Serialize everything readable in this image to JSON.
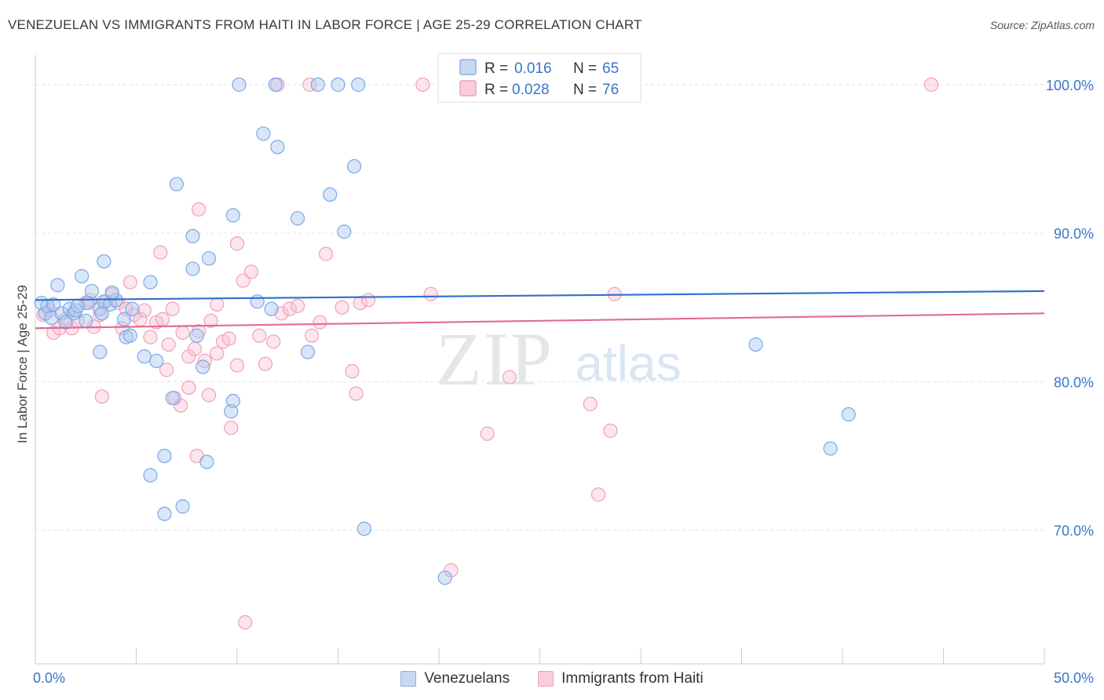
{
  "title": "VENEZUELAN VS IMMIGRANTS FROM HAITI IN LABOR FORCE | AGE 25-29 CORRELATION CHART",
  "source": "Source: ZipAtlas.com",
  "legend": {
    "items": [
      {
        "r_label": "R =",
        "r_value": "0.016",
        "n_label": "N =",
        "n_value": "65"
      },
      {
        "r_label": "R =",
        "r_value": "0.028",
        "n_label": "N =",
        "n_value": "76"
      }
    ]
  },
  "bottom_legend": [
    "Venezuelans",
    "Immigrants from Haiti"
  ],
  "chart_data": {
    "type": "scatter",
    "title": "VENEZUELAN VS IMMIGRANTS FROM HAITI IN LABOR FORCE | AGE 25-29 CORRELATION CHART",
    "xlabel": "",
    "ylabel": "In Labor Force | Age 25-29",
    "xlim": [
      0,
      50
    ],
    "ylim": [
      61,
      102
    ],
    "x_tick_labels": [
      "0.0%",
      "50.0%"
    ],
    "y_ticks": [
      70,
      80,
      90,
      100
    ],
    "y_tick_labels": [
      "70.0%",
      "80.0%",
      "90.0%",
      "100.0%"
    ],
    "grid": true,
    "legend_placement": "top-center",
    "colors": {
      "venezuelans": "#7aaae6",
      "haiti": "#f0a0bb",
      "venezuelans_line": "#2f6fce",
      "haiti_line": "#e26a94",
      "accent_text": "#3a74c9"
    },
    "series": [
      {
        "name": "Venezuelans",
        "r": 0.016,
        "n": 65,
        "trend": [
          [
            0,
            85.5
          ],
          [
            50,
            86.1
          ]
        ],
        "points": [
          [
            0.3,
            85.3
          ],
          [
            0.5,
            84.6
          ],
          [
            0.6,
            85.1
          ],
          [
            0.8,
            84.3
          ],
          [
            0.9,
            85.2
          ],
          [
            1.1,
            86.5
          ],
          [
            1.3,
            84.6
          ],
          [
            1.5,
            84.0
          ],
          [
            1.7,
            84.9
          ],
          [
            1.9,
            84.6
          ],
          [
            2.0,
            84.8
          ],
          [
            2.3,
            87.1
          ],
          [
            2.6,
            85.3
          ],
          [
            2.8,
            86.1
          ],
          [
            3.2,
            84.9
          ],
          [
            3.4,
            85.4
          ],
          [
            3.7,
            85.2
          ],
          [
            4.0,
            85.5
          ],
          [
            4.4,
            84.2
          ],
          [
            4.8,
            84.9
          ],
          [
            3.3,
            84.6
          ],
          [
            2.1,
            85.1
          ],
          [
            2.5,
            84.1
          ],
          [
            3.2,
            82.0
          ],
          [
            3.4,
            88.1
          ],
          [
            3.8,
            86.0
          ],
          [
            4.5,
            83.0
          ],
          [
            4.7,
            83.1
          ],
          [
            5.4,
            81.7
          ],
          [
            5.7,
            86.7
          ],
          [
            6.0,
            81.4
          ],
          [
            7.0,
            93.3
          ],
          [
            6.8,
            78.9
          ],
          [
            7.8,
            89.8
          ],
          [
            7.8,
            87.6
          ],
          [
            8.0,
            83.1
          ],
          [
            8.3,
            81.0
          ],
          [
            8.6,
            88.3
          ],
          [
            9.8,
            91.2
          ],
          [
            9.8,
            78.7
          ],
          [
            11.3,
            96.7
          ],
          [
            11.0,
            85.4
          ],
          [
            11.7,
            84.9
          ],
          [
            12.0,
            95.8
          ],
          [
            13.0,
            91.0
          ],
          [
            13.5,
            82.0
          ],
          [
            14.6,
            92.6
          ],
          [
            15.3,
            90.1
          ],
          [
            15.8,
            94.5
          ],
          [
            5.7,
            73.7
          ],
          [
            6.4,
            75.0
          ],
          [
            6.4,
            71.1
          ],
          [
            7.3,
            71.6
          ],
          [
            8.5,
            74.6
          ],
          [
            9.7,
            78.0
          ],
          [
            16.3,
            70.1
          ],
          [
            20.3,
            66.8
          ],
          [
            35.7,
            82.5
          ],
          [
            39.4,
            75.5
          ],
          [
            40.3,
            77.8
          ],
          [
            10.1,
            100
          ],
          [
            11.9,
            100
          ],
          [
            14.0,
            100
          ],
          [
            15.0,
            100
          ],
          [
            16.0,
            100
          ]
        ]
      },
      {
        "name": "Immigrants from Haiti",
        "r": 0.028,
        "n": 76,
        "trend": [
          [
            0,
            83.6
          ],
          [
            50,
            84.6
          ]
        ],
        "points": [
          [
            0.4,
            84.5
          ],
          [
            0.7,
            84.8
          ],
          [
            0.9,
            83.3
          ],
          [
            1.2,
            83.6
          ],
          [
            1.5,
            84.2
          ],
          [
            1.8,
            83.6
          ],
          [
            2.1,
            84.1
          ],
          [
            2.5,
            85.3
          ],
          [
            2.7,
            85.5
          ],
          [
            2.9,
            83.7
          ],
          [
            3.2,
            84.5
          ],
          [
            3.5,
            85.4
          ],
          [
            3.8,
            85.9
          ],
          [
            4.1,
            85.3
          ],
          [
            4.3,
            83.6
          ],
          [
            4.5,
            84.9
          ],
          [
            4.7,
            86.7
          ],
          [
            4.9,
            84.5
          ],
          [
            5.2,
            84.2
          ],
          [
            5.4,
            84.8
          ],
          [
            5.7,
            83.0
          ],
          [
            6.0,
            84.0
          ],
          [
            6.3,
            84.2
          ],
          [
            6.6,
            82.5
          ],
          [
            6.8,
            84.9
          ],
          [
            7.3,
            83.3
          ],
          [
            7.6,
            81.7
          ],
          [
            7.9,
            82.2
          ],
          [
            8.1,
            83.4
          ],
          [
            8.4,
            81.4
          ],
          [
            8.7,
            84.1
          ],
          [
            9.0,
            81.9
          ],
          [
            9.3,
            82.7
          ],
          [
            9.6,
            82.9
          ],
          [
            10.0,
            81.1
          ],
          [
            10.3,
            86.8
          ],
          [
            10.7,
            87.4
          ],
          [
            11.1,
            83.1
          ],
          [
            11.4,
            81.2
          ],
          [
            11.8,
            82.7
          ],
          [
            12.2,
            84.6
          ],
          [
            12.6,
            84.9
          ],
          [
            13.0,
            85.1
          ],
          [
            13.7,
            83.1
          ],
          [
            14.1,
            84.0
          ],
          [
            14.4,
            88.6
          ],
          [
            15.2,
            85.0
          ],
          [
            16.1,
            85.3
          ],
          [
            16.5,
            85.5
          ],
          [
            8.1,
            91.6
          ],
          [
            10.0,
            89.3
          ],
          [
            6.2,
            88.7
          ],
          [
            9.0,
            85.2
          ],
          [
            15.7,
            80.7
          ],
          [
            15.9,
            79.2
          ],
          [
            6.5,
            80.8
          ],
          [
            8.6,
            79.1
          ],
          [
            7.6,
            79.6
          ],
          [
            7.2,
            78.4
          ],
          [
            8.0,
            75.0
          ],
          [
            9.7,
            76.9
          ],
          [
            3.3,
            79.0
          ],
          [
            22.4,
            76.5
          ],
          [
            23.5,
            80.3
          ],
          [
            27.5,
            78.5
          ],
          [
            28.5,
            76.7
          ],
          [
            28.7,
            85.9
          ],
          [
            19.6,
            85.9
          ],
          [
            27.9,
            72.4
          ],
          [
            20.6,
            67.3
          ],
          [
            10.4,
            63.8
          ],
          [
            12.0,
            100
          ],
          [
            13.6,
            100
          ],
          [
            19.2,
            100
          ],
          [
            44.4,
            100
          ],
          [
            6.9,
            78.9
          ]
        ]
      }
    ]
  }
}
